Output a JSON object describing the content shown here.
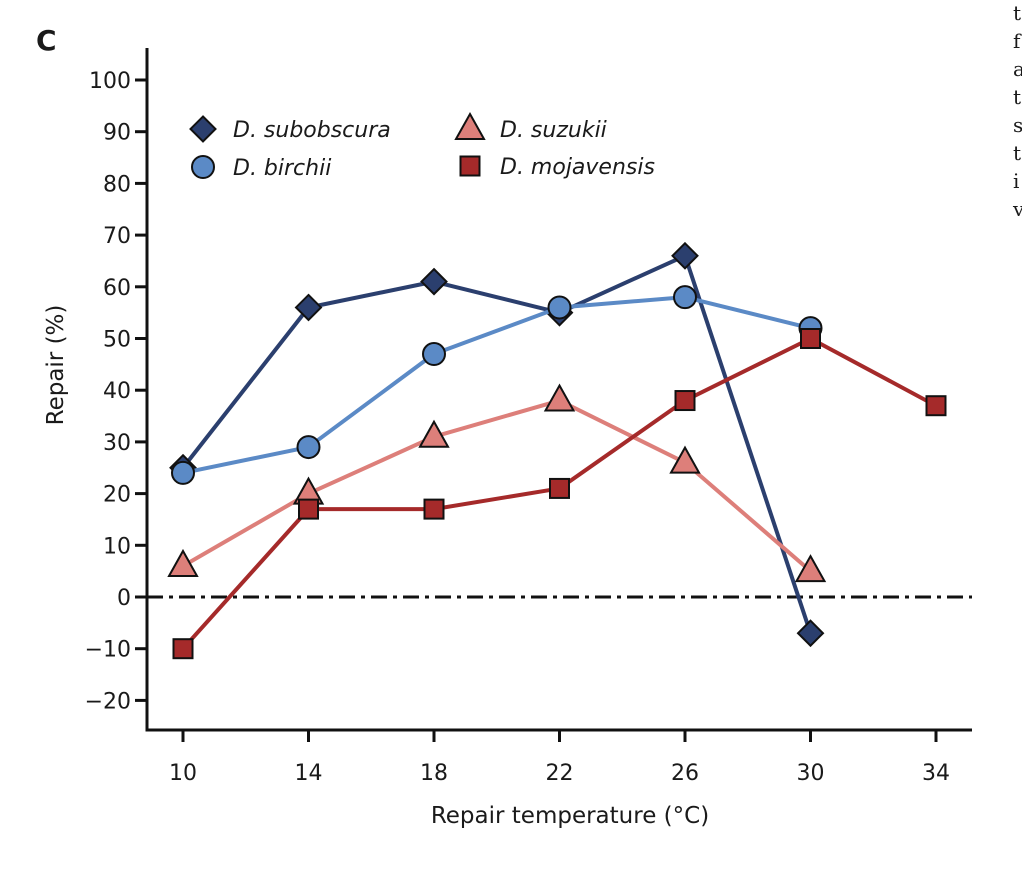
{
  "panel_label": "C",
  "side_text": [
    "t",
    "f",
    "a",
    "t",
    "s",
    "t",
    "i",
    "v"
  ],
  "chart_data": {
    "type": "line",
    "xlabel": "Repair temperature (°C)",
    "ylabel": "Repair (%)",
    "x_ticks": [
      10,
      14,
      18,
      22,
      26,
      30,
      34
    ],
    "y_ticks": [
      -20,
      -10,
      0,
      10,
      20,
      30,
      40,
      50,
      60,
      70,
      80,
      90,
      100
    ],
    "xlim": [
      8.8,
      35.2
    ],
    "ylim": [
      -26,
      106
    ],
    "zero_line": true,
    "legend_position": "top-left",
    "series": [
      {
        "name": "D. subobscura",
        "marker": "diamond",
        "color": "#2b3f6e",
        "fill": "#2b3f6e",
        "x": [
          10,
          14,
          18,
          22,
          26,
          30
        ],
        "y": [
          25,
          56,
          61,
          55,
          66,
          -7
        ]
      },
      {
        "name": "D. birchii",
        "marker": "circle",
        "color": "#5b8ac6",
        "fill": "#5b8ac6",
        "x": [
          10,
          14,
          18,
          22,
          26,
          30
        ],
        "y": [
          24,
          29,
          47,
          56,
          58,
          52
        ]
      },
      {
        "name": "D. suzukii",
        "marker": "triangle",
        "color": "#dd7f7a",
        "fill": "#dd7f7a",
        "x": [
          10,
          14,
          18,
          22,
          26,
          30
        ],
        "y": [
          6,
          20,
          31,
          38,
          26,
          5
        ]
      },
      {
        "name": "D. mojavensis",
        "marker": "square",
        "color": "#a52a2a",
        "fill": "#a52a2a",
        "x": [
          10,
          14,
          18,
          22,
          26,
          30,
          34
        ],
        "y": [
          -10,
          17,
          17,
          21,
          38,
          50,
          37
        ]
      }
    ]
  }
}
